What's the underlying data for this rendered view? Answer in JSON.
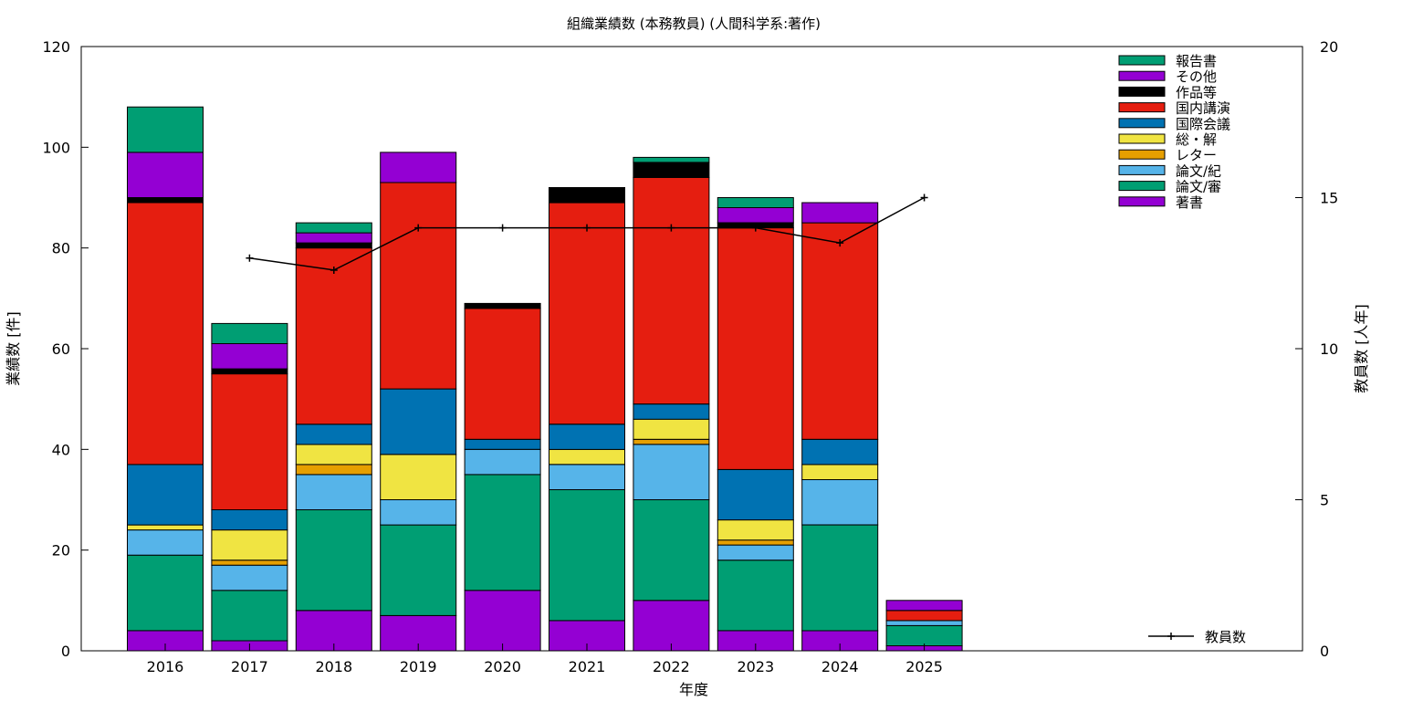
{
  "chart_data": {
    "type": "bar",
    "title": "組織業績数 (本務教員) (人間科学系:著作)",
    "xlabel": "年度",
    "ylabel": "業績数 [件]",
    "y2label": "教員数 [人年]",
    "ylim": [
      0,
      120
    ],
    "y2lim": [
      0,
      20
    ],
    "yticks": [
      0,
      20,
      40,
      60,
      80,
      100,
      120
    ],
    "y2ticks": [
      0,
      5,
      10,
      15,
      20
    ],
    "stacked": true,
    "grid": false,
    "legend_position": "top-right",
    "categories": [
      "2016",
      "2017",
      "2018",
      "2019",
      "2020",
      "2021",
      "2022",
      "2023",
      "2024",
      "2025"
    ],
    "series": [
      {
        "name": "著書",
        "color": "#9400d3",
        "values": [
          4,
          2,
          8,
          7,
          12,
          6,
          10,
          4,
          4,
          1
        ]
      },
      {
        "name": "論文/審",
        "color": "#009e73",
        "values": [
          15,
          10,
          20,
          18,
          23,
          26,
          20,
          14,
          21,
          4
        ]
      },
      {
        "name": "論文/紀",
        "color": "#56b4e9",
        "values": [
          5,
          5,
          7,
          5,
          5,
          5,
          11,
          3,
          9,
          1
        ]
      },
      {
        "name": "レター",
        "color": "#e69f00",
        "values": [
          0,
          1,
          2,
          0,
          0,
          0,
          1,
          1,
          0,
          0
        ]
      },
      {
        "name": "総・解",
        "color": "#f0e442",
        "values": [
          1,
          6,
          4,
          9,
          0,
          3,
          4,
          4,
          3,
          0
        ]
      },
      {
        "name": "国際会議",
        "color": "#0072b2",
        "values": [
          12,
          4,
          4,
          13,
          2,
          5,
          3,
          10,
          5,
          0
        ]
      },
      {
        "name": "国内講演",
        "color": "#e51e10",
        "values": [
          52,
          27,
          35,
          41,
          26,
          44,
          45,
          48,
          43,
          2
        ]
      },
      {
        "name": "作品等",
        "color": "#000000",
        "values": [
          1,
          1,
          1,
          0,
          1,
          3,
          3,
          1,
          0,
          0
        ]
      },
      {
        "name": "その他",
        "color": "#9400d3",
        "values": [
          9,
          5,
          2,
          6,
          0,
          0,
          0,
          3,
          4,
          2
        ]
      },
      {
        "name": "報告書",
        "color": "#009e73",
        "values": [
          9,
          4,
          2,
          0,
          0,
          0,
          1,
          2,
          0,
          0
        ]
      }
    ],
    "line_series": {
      "name": "教員数",
      "color": "#000000",
      "axis": "y2",
      "values": [
        null,
        13.0,
        12.6,
        14.0,
        14.0,
        14.0,
        14.0,
        14.0,
        13.5,
        15.0
      ]
    }
  }
}
